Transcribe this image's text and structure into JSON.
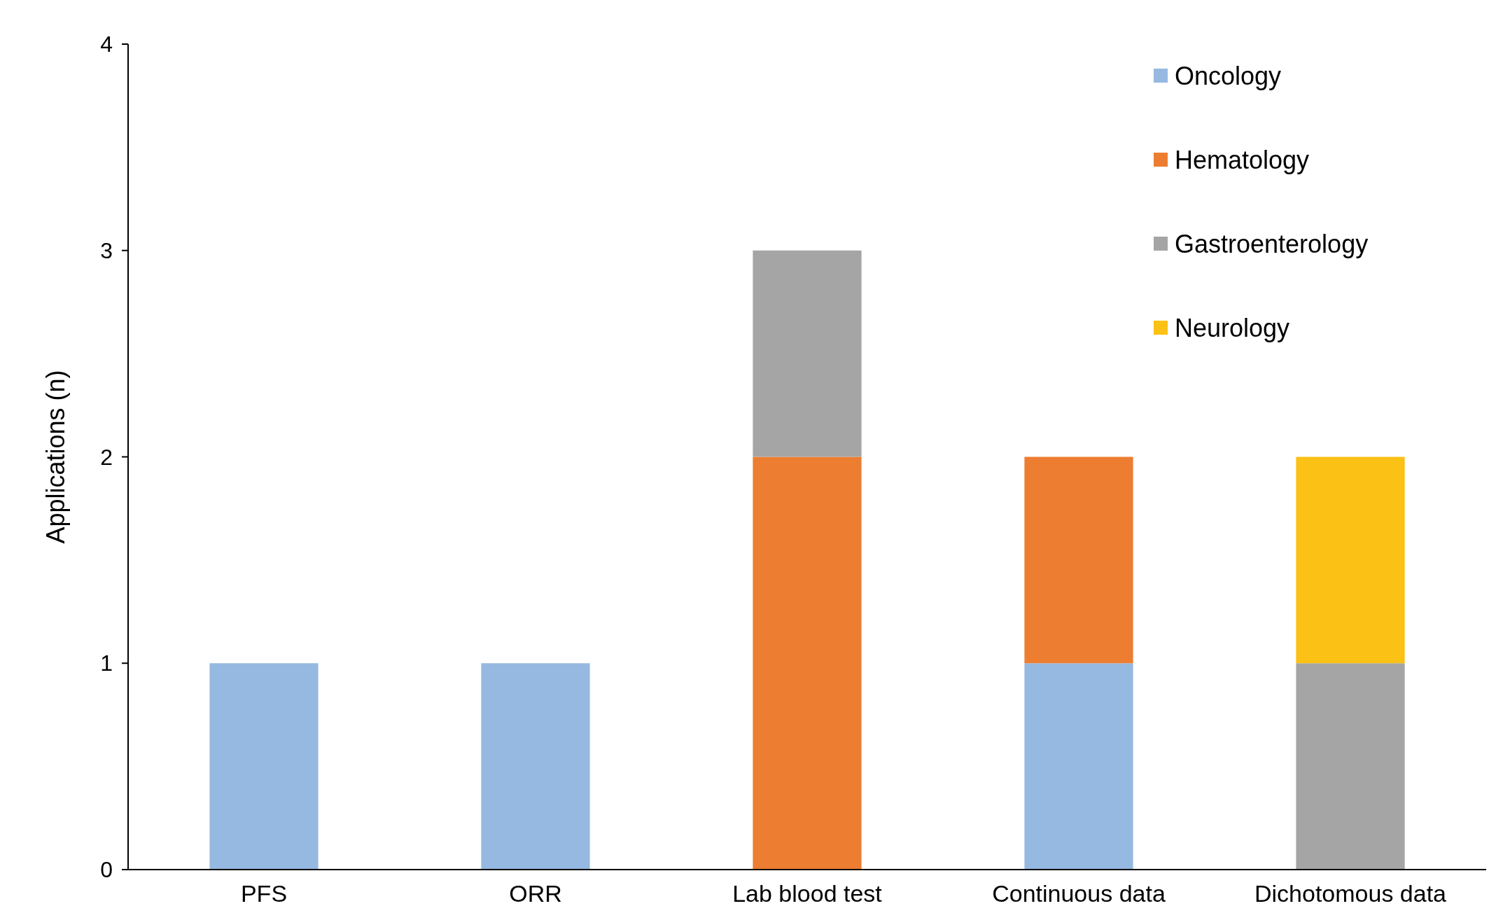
{
  "chart_data": {
    "type": "bar",
    "stacked": true,
    "ylabel": "Applications (n)",
    "categories": [
      "PFS",
      "ORR",
      "Lab blood test",
      "Continuous data",
      "Dichotomous data"
    ],
    "series": [
      {
        "name": "Oncology",
        "color": "#95b9e0",
        "values": [
          1,
          1,
          0,
          1,
          0
        ]
      },
      {
        "name": "Hematology",
        "color": "#ed7d31",
        "values": [
          0,
          0,
          2,
          1,
          0
        ]
      },
      {
        "name": "Gastroenterology",
        "color": "#a5a5a5",
        "values": [
          0,
          0,
          1,
          0,
          1
        ]
      },
      {
        "name": "Neurology",
        "color": "#fbc114",
        "values": [
          0,
          0,
          0,
          0,
          1
        ]
      }
    ],
    "ylim": [
      0,
      4
    ],
    "yticks": [
      0,
      1,
      2,
      3,
      4
    ],
    "grid": false,
    "legend": "top right"
  }
}
